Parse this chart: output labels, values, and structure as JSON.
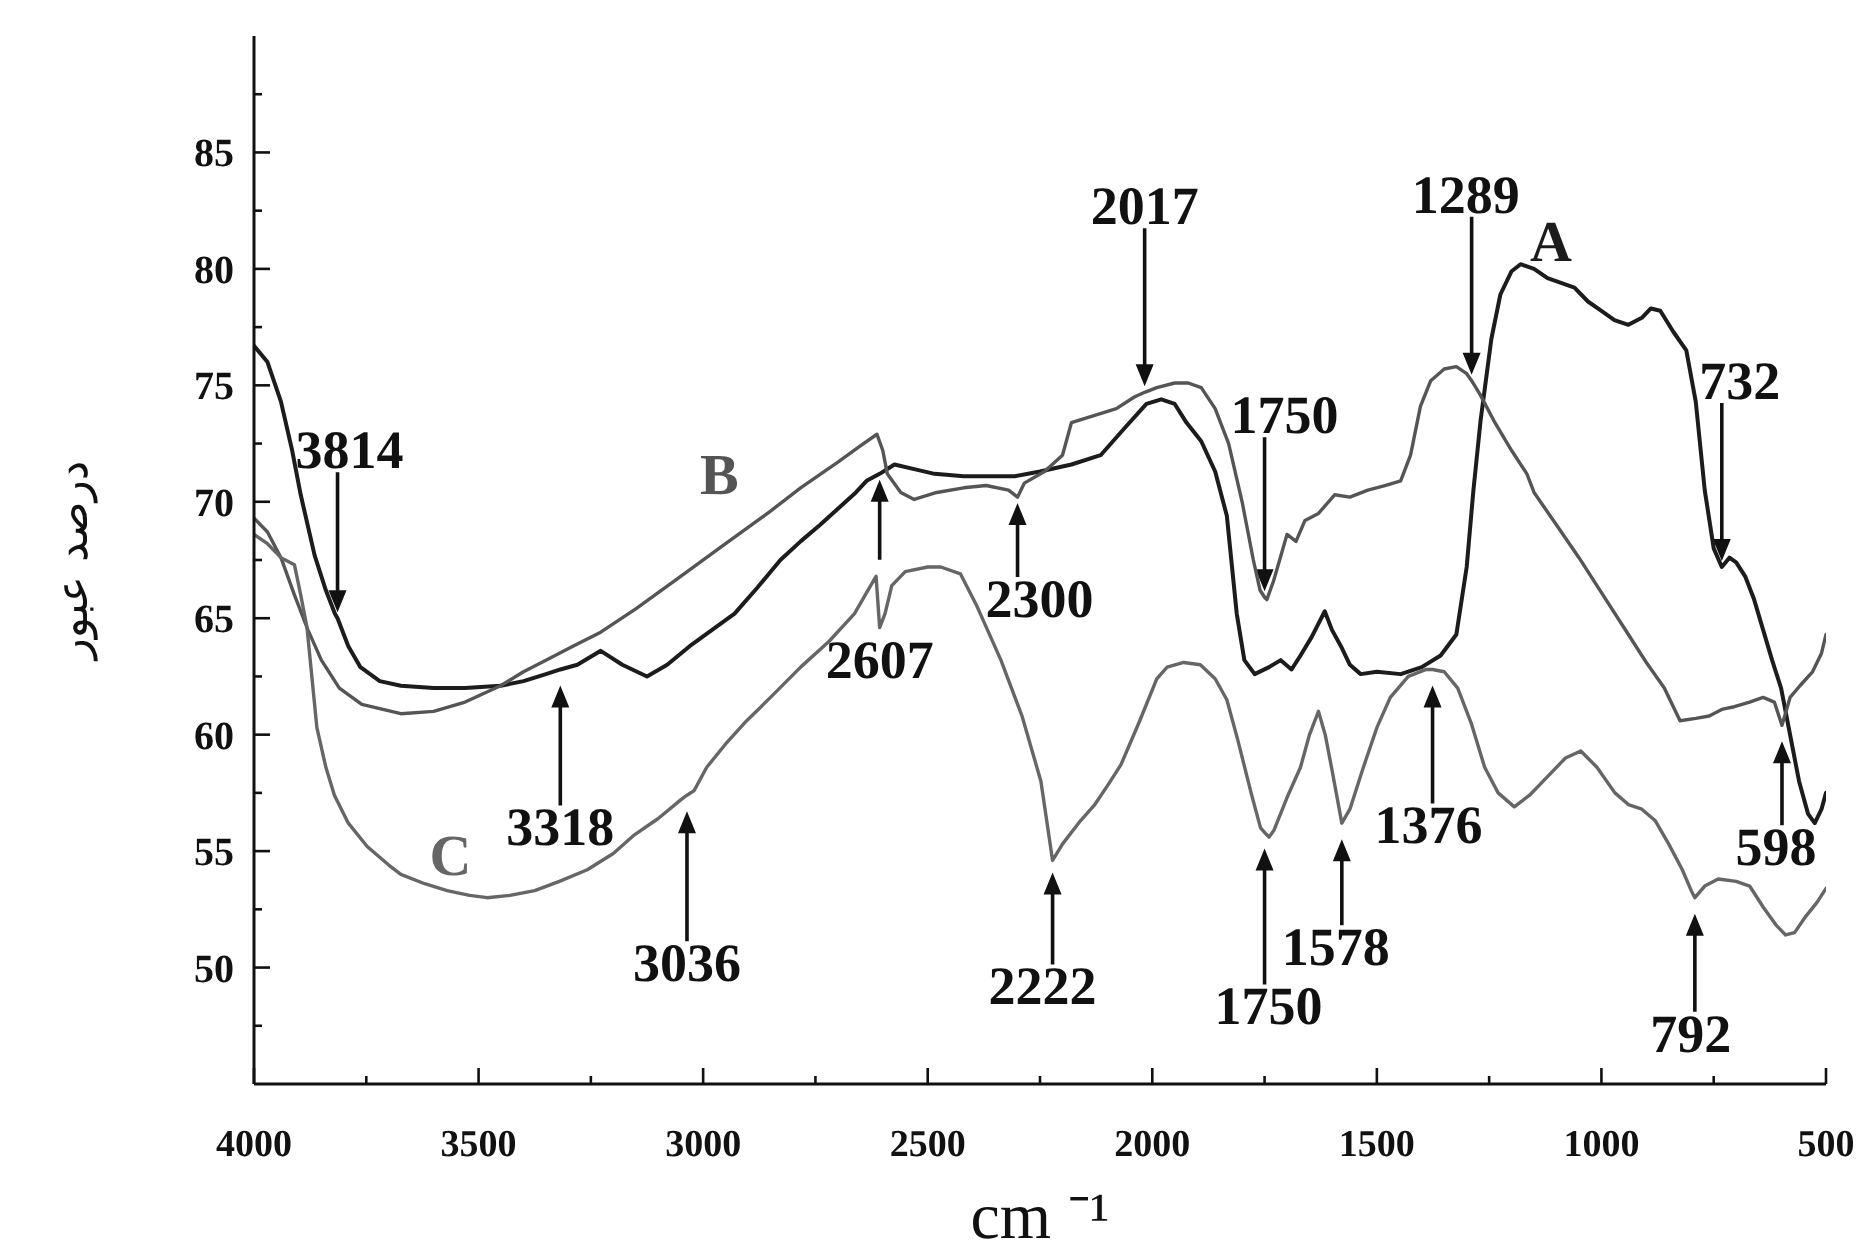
{
  "chart_data": {
    "type": "line",
    "xlabel": "cm ⁻¹",
    "ylabel": "درصد عبور",
    "xlim": [
      4000,
      500
    ],
    "xticks": [
      4000,
      {
        "value": 3750,
        "label": null
      },
      3500,
      {
        "value": 3250,
        "label": null
      },
      3000,
      {
        "value": 2750,
        "label": null
      },
      2500,
      {
        "value": 2250,
        "label": null
      },
      2000,
      {
        "value": 1750,
        "label": null
      },
      1500,
      {
        "value": 1250,
        "label": null
      },
      1000,
      {
        "value": 750,
        "label": null
      },
      500
    ],
    "ylim": [
      45,
      90
    ],
    "yticks": [
      {
        "value": 47.5,
        "label": null
      },
      50,
      {
        "value": 52.5,
        "label": null
      },
      55,
      {
        "value": 57.5,
        "label": null
      },
      60,
      {
        "value": 62.5,
        "label": null
      },
      65,
      {
        "value": 67.5,
        "label": null
      },
      70,
      {
        "value": 72.5,
        "label": null
      },
      75,
      {
        "value": 77.5,
        "label": null
      },
      80,
      {
        "value": 82.5,
        "label": null
      },
      85,
      {
        "value": 87.5,
        "label": null
      }
    ],
    "series": [
      {
        "name": "A",
        "color": "#1c1c1c",
        "x": [
          4000,
          3970,
          3940,
          3915,
          3896,
          3865,
          3840,
          3820,
          3814,
          3790,
          3763,
          3720,
          3673,
          3600,
          3530,
          3451,
          3400,
          3350,
          3318,
          3280,
          3228,
          3180,
          3125,
          3080,
          3030,
          2980,
          2930,
          2880,
          2828,
          2783,
          2740,
          2700,
          2660,
          2636,
          2607,
          2574,
          2530,
          2485,
          2420,
          2360,
          2306,
          2250,
          2180,
          2115,
          2060,
          2013,
          1980,
          1950,
          1924,
          1891,
          1860,
          1834,
          1812,
          1795,
          1772,
          1740,
          1714,
          1690,
          1670,
          1645,
          1616,
          1600,
          1580,
          1560,
          1536,
          1500,
          1447,
          1400,
          1358,
          1323,
          1300,
          1285,
          1269,
          1245,
          1225,
          1200,
          1180,
          1150,
          1120,
          1090,
          1060,
          1030,
          1000,
          971,
          940,
          910,
          890,
          869,
          840,
          811,
          790,
          770,
          750,
          732,
          715,
          700,
          680,
          660,
          640,
          620,
          600,
          580,
          560,
          540,
          525,
          510,
          500
        ],
        "values": [
          76.7,
          76.0,
          74.3,
          72.2,
          70.3,
          67.7,
          66.2,
          65.2,
          65.0,
          63.8,
          62.9,
          62.3,
          62.1,
          62.0,
          62.0,
          62.1,
          62.3,
          62.6,
          62.8,
          63.0,
          63.6,
          63.0,
          62.5,
          63.0,
          63.8,
          64.5,
          65.2,
          66.3,
          67.5,
          68.3,
          69.0,
          69.7,
          70.4,
          70.9,
          71.2,
          71.6,
          71.4,
          71.2,
          71.1,
          71.1,
          71.1,
          71.3,
          71.6,
          72.0,
          73.2,
          74.2,
          74.4,
          74.2,
          73.4,
          72.6,
          71.3,
          69.4,
          65.2,
          63.2,
          62.6,
          62.9,
          63.2,
          62.8,
          63.4,
          64.2,
          65.3,
          64.5,
          63.8,
          63.0,
          62.6,
          62.7,
          62.6,
          62.9,
          63.4,
          64.3,
          67.2,
          70.5,
          73.5,
          77.0,
          78.9,
          79.9,
          80.2,
          80.0,
          79.6,
          79.4,
          79.2,
          78.6,
          78.2,
          77.8,
          77.6,
          77.9,
          78.3,
          78.2,
          77.3,
          76.5,
          74.3,
          70.5,
          68.0,
          67.2,
          67.6,
          67.4,
          66.8,
          65.8,
          64.5,
          63.2,
          62.0,
          60.0,
          58.0,
          56.6,
          56.2,
          56.8,
          57.5
        ]
      },
      {
        "name": "B",
        "color": "#555555",
        "x": [
          4000,
          3970,
          3940,
          3910,
          3880,
          3850,
          3810,
          3760,
          3673,
          3600,
          3530,
          3451,
          3400,
          3350,
          3290,
          3228,
          3150,
          3050,
          2950,
          2850,
          2783,
          2700,
          2650,
          2613,
          2600,
          2590,
          2560,
          2530,
          2480,
          2420,
          2370,
          2320,
          2300,
          2285,
          2240,
          2200,
          2180,
          2130,
          2080,
          2040,
          2017,
          1990,
          1950,
          1920,
          1891,
          1860,
          1830,
          1800,
          1775,
          1760,
          1750,
          1745,
          1730,
          1715,
          1700,
          1680,
          1660,
          1630,
          1594,
          1560,
          1520,
          1480,
          1447,
          1425,
          1403,
          1380,
          1350,
          1323,
          1300,
          1289,
          1270,
          1240,
          1200,
          1166,
          1150,
          1100,
          1050,
          1000,
          950,
          900,
          860,
          825,
          790,
          760,
          730,
          704,
          670,
          640,
          615,
          598,
          580,
          558,
          530,
          510,
          500
        ],
        "values": [
          69.3,
          68.7,
          67.6,
          66.0,
          64.5,
          63.2,
          62.0,
          61.3,
          60.9,
          61.0,
          61.4,
          62.1,
          62.7,
          63.2,
          63.8,
          64.4,
          65.4,
          66.8,
          68.2,
          69.6,
          70.6,
          71.7,
          72.4,
          72.9,
          72.2,
          71.2,
          70.4,
          70.1,
          70.4,
          70.6,
          70.7,
          70.5,
          70.2,
          70.8,
          71.3,
          72.0,
          73.4,
          73.7,
          74.0,
          74.5,
          74.7,
          74.9,
          75.1,
          75.1,
          74.9,
          74.0,
          72.5,
          70.0,
          67.5,
          66.2,
          65.9,
          65.8,
          66.6,
          67.6,
          68.6,
          68.3,
          69.2,
          69.5,
          70.3,
          70.2,
          70.5,
          70.7,
          70.9,
          72.0,
          74.1,
          75.2,
          75.7,
          75.8,
          75.5,
          75.2,
          74.6,
          73.5,
          72.2,
          71.2,
          70.4,
          69.0,
          67.6,
          66.1,
          64.6,
          63.1,
          62.0,
          60.6,
          60.7,
          60.8,
          61.1,
          61.2,
          61.4,
          61.6,
          61.4,
          60.4,
          61.6,
          62.1,
          62.7,
          63.5,
          64.3
        ]
      },
      {
        "name": "C",
        "color": "#666666",
        "x": [
          4000,
          3970,
          3940,
          3910,
          3896,
          3882,
          3860,
          3840,
          3821,
          3790,
          3748,
          3700,
          3673,
          3620,
          3570,
          3520,
          3481,
          3430,
          3375,
          3320,
          3258,
          3200,
          3153,
          3100,
          3050,
          3036,
          3020,
          2992,
          2950,
          2903,
          2850,
          2783,
          2720,
          2663,
          2630,
          2615,
          2607,
          2595,
          2580,
          2550,
          2500,
          2471,
          2427,
          2390,
          2337,
          2290,
          2248,
          2222,
          2200,
          2160,
          2128,
          2100,
          2070,
          2030,
          1990,
          1967,
          1930,
          1893,
          1860,
          1834,
          1810,
          1780,
          1759,
          1750,
          1740,
          1729,
          1700,
          1670,
          1650,
          1630,
          1615,
          1600,
          1578,
          1560,
          1530,
          1500,
          1470,
          1430,
          1390,
          1376,
          1350,
          1320,
          1290,
          1260,
          1230,
          1194,
          1160,
          1120,
          1080,
          1046,
          1010,
          970,
          940,
          910,
          880,
          850,
          820,
          800,
          792,
          770,
          740,
          700,
          670,
          640,
          610,
          590,
          570,
          545,
          520,
          500
        ],
        "values": [
          68.6,
          68.2,
          67.6,
          67.3,
          66.0,
          64.6,
          60.3,
          58.6,
          57.4,
          56.2,
          55.2,
          54.4,
          54.0,
          53.6,
          53.3,
          53.1,
          53.0,
          53.1,
          53.3,
          53.7,
          54.2,
          54.9,
          55.7,
          56.4,
          57.2,
          57.4,
          57.6,
          58.6,
          59.6,
          60.6,
          61.6,
          62.9,
          64.0,
          65.2,
          66.3,
          66.8,
          64.6,
          65.2,
          66.4,
          67.0,
          67.2,
          67.2,
          66.9,
          65.5,
          63.2,
          60.8,
          58.0,
          54.6,
          55.3,
          56.3,
          57.0,
          57.8,
          58.7,
          60.5,
          62.4,
          62.9,
          63.1,
          63.0,
          62.4,
          61.5,
          59.8,
          57.5,
          56.0,
          55.8,
          55.6,
          55.9,
          57.3,
          58.6,
          60.0,
          61.0,
          60.0,
          58.5,
          56.2,
          56.8,
          58.6,
          60.3,
          61.6,
          62.5,
          62.8,
          62.8,
          62.7,
          62.0,
          60.5,
          58.6,
          57.5,
          56.9,
          57.4,
          58.2,
          59.0,
          59.3,
          58.6,
          57.5,
          57.0,
          56.8,
          56.3,
          55.3,
          54.2,
          53.3,
          53.0,
          53.5,
          53.8,
          53.7,
          53.5,
          52.6,
          51.8,
          51.4,
          51.5,
          52.2,
          52.8,
          53.4
        ]
      }
    ],
    "annotations": [
      {
        "text": "3814",
        "x": 3814,
        "y": 65.0
      },
      {
        "text": "3318",
        "x": 3318,
        "y": 62.8
      },
      {
        "text": "3036",
        "x": 3036,
        "y": 57.4
      },
      {
        "text": "2607",
        "x": 2607,
        "y": 71.2
      },
      {
        "text": "2300",
        "x": 2300,
        "y": 70.2
      },
      {
        "text": "2017",
        "x": 2017,
        "y": 74.7
      },
      {
        "text": "1750",
        "x": 1750,
        "y": 65.9
      },
      {
        "text": "1289",
        "x": 1289,
        "y": 75.2
      },
      {
        "text": "732",
        "x": 732,
        "y": 67.2
      },
      {
        "text": "598",
        "x": 598,
        "y": 60.4
      },
      {
        "text": "2222",
        "x": 2222,
        "y": 54.6
      },
      {
        "text": "1750",
        "x": 1750,
        "y": 55.8
      },
      {
        "text": "1578",
        "x": 1578,
        "y": 56.2
      },
      {
        "text": "1376",
        "x": 1376,
        "y": 62.8
      },
      {
        "text": "792",
        "x": 792,
        "y": 53.0
      }
    ]
  }
}
